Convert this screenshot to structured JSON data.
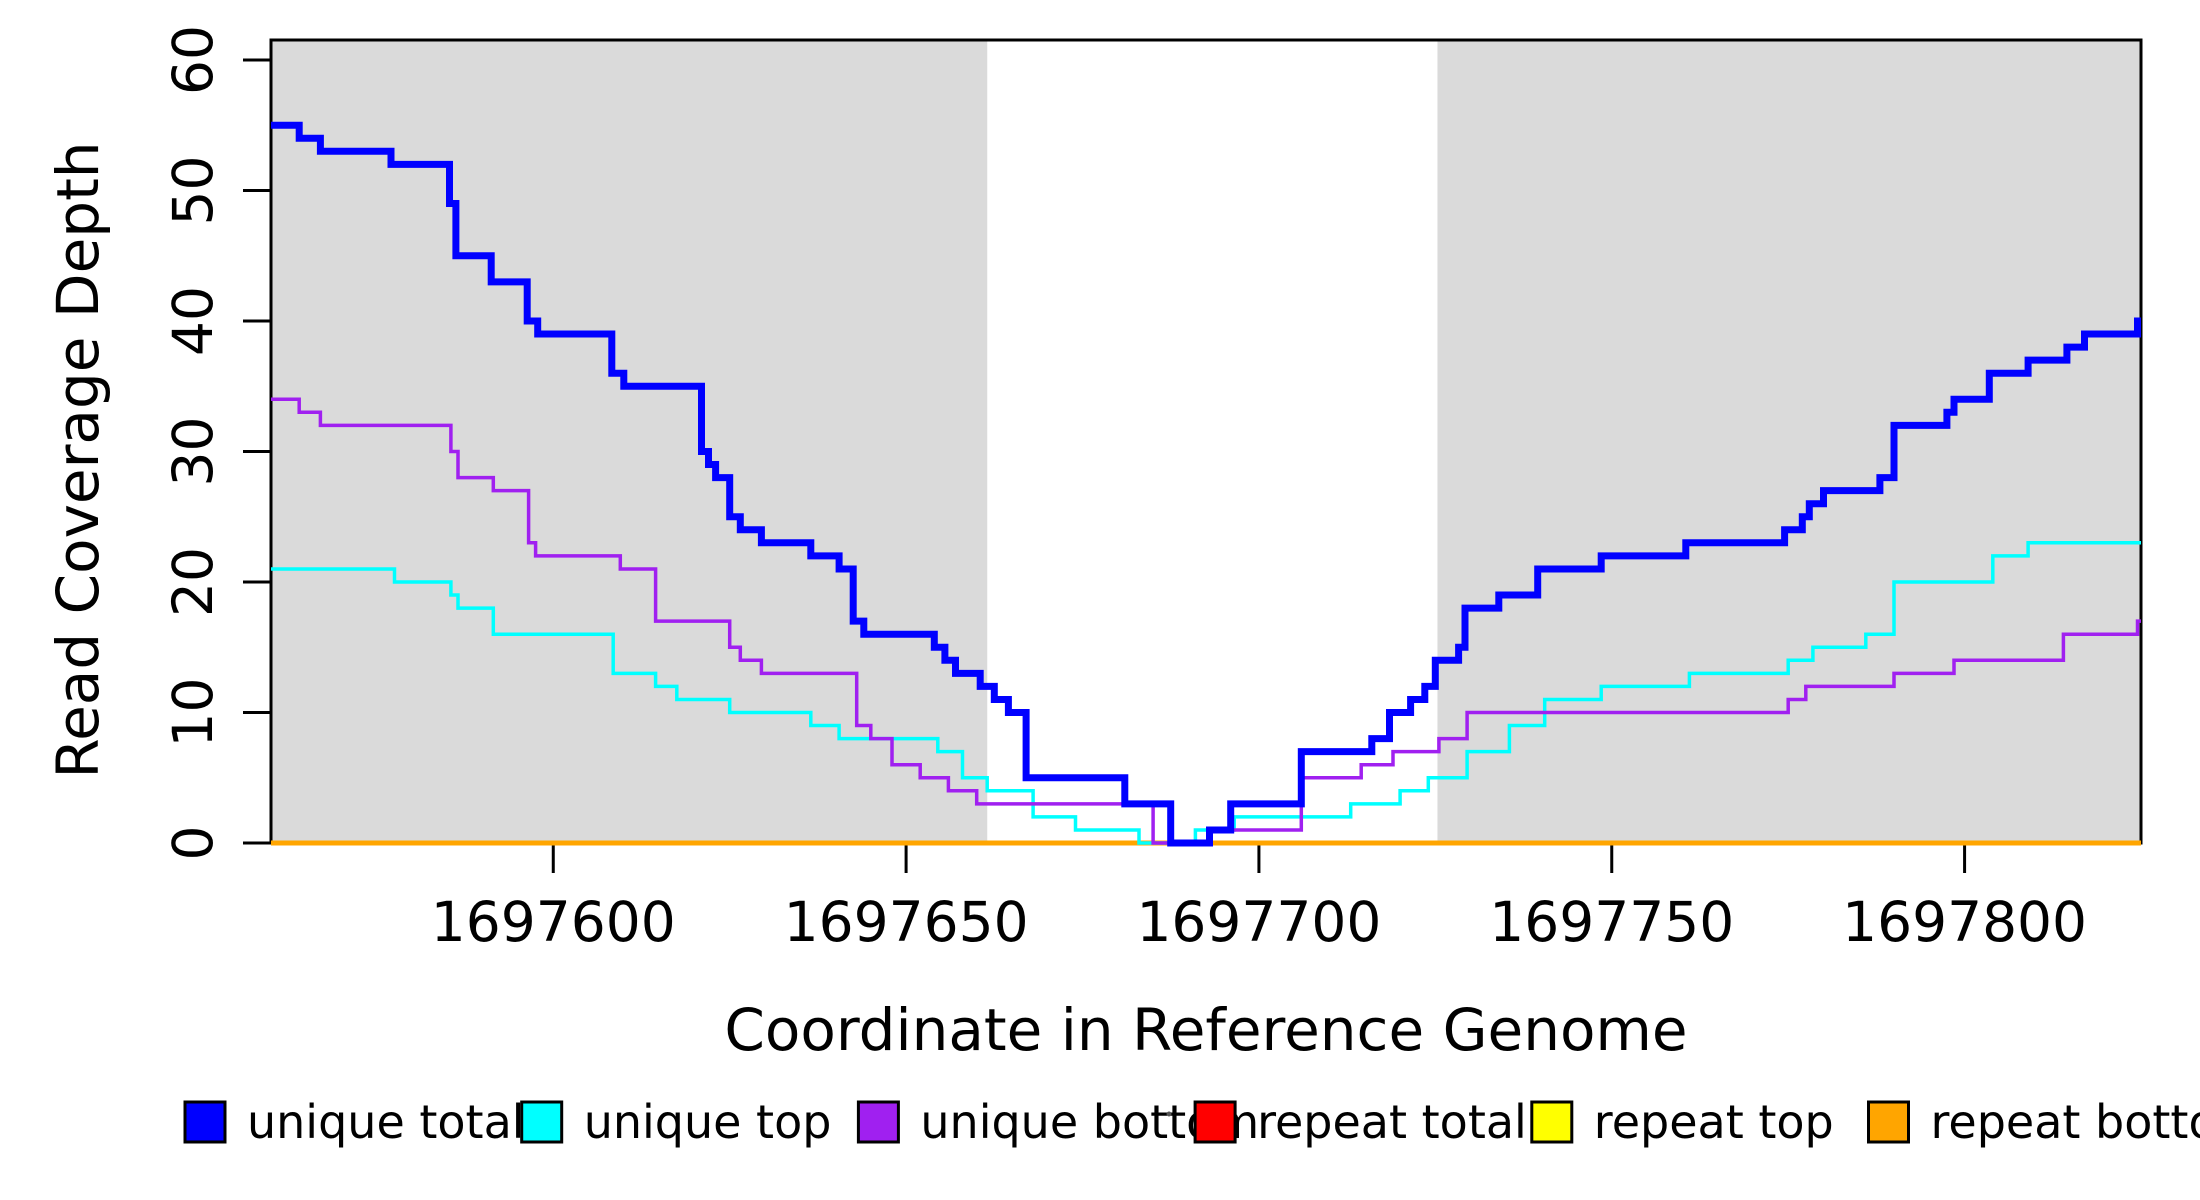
{
  "chart_data": {
    "type": "line",
    "subtype": "step-coverage",
    "title": "",
    "xlabel": "Coordinate in Reference Genome",
    "ylabel": "Read Coverage Depth",
    "xlim": [
      1697560,
      1697825
    ],
    "ylim": [
      0,
      61.5
    ],
    "xticks": [
      1697600,
      1697650,
      1697700,
      1697750,
      1697800
    ],
    "yticks": [
      0,
      10,
      20,
      30,
      40,
      50,
      60
    ],
    "grid": false,
    "background_color": "#ffffff",
    "band_color": "#dadada",
    "axis_color": "#000000",
    "shaded_regions": [
      {
        "name": "left-repeat-flank",
        "x0": 1697560,
        "x1": 1697661.5
      },
      {
        "name": "right-repeat-flank",
        "x0": 1697725.3,
        "x1": 1697825
      }
    ],
    "series": [
      {
        "name": "repeat total",
        "color": "#FF0000",
        "width": 3,
        "steps": [
          [
            1697560,
            0
          ]
        ]
      },
      {
        "name": "repeat top",
        "color": "#FFFF00",
        "width": 3,
        "steps": [
          [
            1697560,
            0
          ]
        ]
      },
      {
        "name": "repeat bottom",
        "color": "#FFA500",
        "width": 5,
        "steps": [
          [
            1697560,
            0
          ]
        ]
      },
      {
        "name": "unique top",
        "color": "#00FFFF",
        "width": 3.5,
        "steps": [
          [
            1697560,
            21
          ],
          [
            1697577.5,
            20
          ],
          [
            1697585.5,
            19
          ],
          [
            1697586.5,
            18
          ],
          [
            1697591.5,
            16
          ],
          [
            1697608.5,
            13
          ],
          [
            1697614.5,
            12
          ],
          [
            1697617.5,
            11
          ],
          [
            1697625,
            10
          ],
          [
            1697636.5,
            9
          ],
          [
            1697640.5,
            8
          ],
          [
            1697654.5,
            7
          ],
          [
            1697658,
            5
          ],
          [
            1697661.5,
            4
          ],
          [
            1697668,
            2
          ],
          [
            1697674,
            1
          ],
          [
            1697683,
            0
          ],
          [
            1697691,
            1
          ],
          [
            1697696.5,
            2
          ],
          [
            1697713,
            3
          ],
          [
            1697720,
            4
          ],
          [
            1697724,
            5
          ],
          [
            1697729.5,
            7
          ],
          [
            1697735.5,
            9
          ],
          [
            1697740.5,
            11
          ],
          [
            1697748.5,
            12
          ],
          [
            1697761,
            13
          ],
          [
            1697775,
            14
          ],
          [
            1697778.5,
            15
          ],
          [
            1697786,
            16
          ],
          [
            1697790,
            20
          ],
          [
            1697804,
            22
          ],
          [
            1697809,
            23
          ]
        ]
      },
      {
        "name": "unique bottom",
        "color": "#A020F0",
        "width": 3.5,
        "steps": [
          [
            1697560,
            34
          ],
          [
            1697564,
            33
          ],
          [
            1697567,
            32
          ],
          [
            1697585.5,
            30
          ],
          [
            1697586.5,
            28
          ],
          [
            1697591.5,
            27
          ],
          [
            1697596.5,
            23
          ],
          [
            1697597.5,
            22
          ],
          [
            1697609.5,
            21
          ],
          [
            1697614.5,
            17
          ],
          [
            1697625,
            15
          ],
          [
            1697626.5,
            14
          ],
          [
            1697629.5,
            13
          ],
          [
            1697643,
            9
          ],
          [
            1697645,
            8
          ],
          [
            1697648,
            6
          ],
          [
            1697652,
            5
          ],
          [
            1697656,
            4
          ],
          [
            1697660,
            3
          ],
          [
            1697685,
            0
          ],
          [
            1697693,
            1
          ],
          [
            1697706,
            5
          ],
          [
            1697714.5,
            6
          ],
          [
            1697719,
            7
          ],
          [
            1697725.5,
            8
          ],
          [
            1697729.5,
            10
          ],
          [
            1697775,
            11
          ],
          [
            1697777.5,
            12
          ],
          [
            1697790,
            13
          ],
          [
            1697798.5,
            14
          ],
          [
            1697814,
            16
          ],
          [
            1697824.5,
            17
          ]
        ]
      },
      {
        "name": "unique total",
        "color": "#0000FF",
        "width": 7,
        "steps": [
          [
            1697560,
            55
          ],
          [
            1697564,
            54
          ],
          [
            1697567,
            53
          ],
          [
            1697577,
            52
          ],
          [
            1697585.3,
            49
          ],
          [
            1697586.2,
            45
          ],
          [
            1697591.2,
            43
          ],
          [
            1697596.3,
            40
          ],
          [
            1697597.8,
            39
          ],
          [
            1697608.3,
            36
          ],
          [
            1697610,
            35
          ],
          [
            1697621,
            30
          ],
          [
            1697622,
            29
          ],
          [
            1697623,
            28
          ],
          [
            1697625,
            25
          ],
          [
            1697626.5,
            24
          ],
          [
            1697629.5,
            23
          ],
          [
            1697636.5,
            22
          ],
          [
            1697640.5,
            21
          ],
          [
            1697642.5,
            17
          ],
          [
            1697644,
            16
          ],
          [
            1697654,
            15
          ],
          [
            1697655.5,
            14
          ],
          [
            1697657,
            13
          ],
          [
            1697660.5,
            12
          ],
          [
            1697662.5,
            11
          ],
          [
            1697664.5,
            10
          ],
          [
            1697667,
            5
          ],
          [
            1697681,
            3
          ],
          [
            1697687.5,
            0
          ],
          [
            1697693,
            1
          ],
          [
            1697696,
            3
          ],
          [
            1697706,
            7
          ],
          [
            1697716,
            8
          ],
          [
            1697718.5,
            10
          ],
          [
            1697721.5,
            11
          ],
          [
            1697723.5,
            12
          ],
          [
            1697725,
            14
          ],
          [
            1697728.3,
            15
          ],
          [
            1697729.2,
            18
          ],
          [
            1697734,
            19
          ],
          [
            1697739.5,
            21
          ],
          [
            1697748.5,
            22
          ],
          [
            1697760.5,
            23
          ],
          [
            1697774.5,
            24
          ],
          [
            1697777,
            25
          ],
          [
            1697778,
            26
          ],
          [
            1697780,
            27
          ],
          [
            1697788,
            28
          ],
          [
            1697790,
            32
          ],
          [
            1697797.5,
            33
          ],
          [
            1697798.5,
            34
          ],
          [
            1697803.5,
            36
          ],
          [
            1697809,
            37
          ],
          [
            1697814.5,
            38
          ],
          [
            1697817,
            39
          ],
          [
            1697824.5,
            40
          ]
        ]
      }
    ],
    "legend": {
      "position": "bottom",
      "items": [
        {
          "label": "unique total",
          "color": "#0000FF"
        },
        {
          "label": "unique top",
          "color": "#00FFFF"
        },
        {
          "label": "unique bottom",
          "color": "#A020F0"
        },
        {
          "label": "repeat total",
          "color": "#FF0000"
        },
        {
          "label": "repeat top",
          "color": "#FFFF00"
        },
        {
          "label": "repeat bottom",
          "color": "#FFA500"
        }
      ]
    }
  }
}
